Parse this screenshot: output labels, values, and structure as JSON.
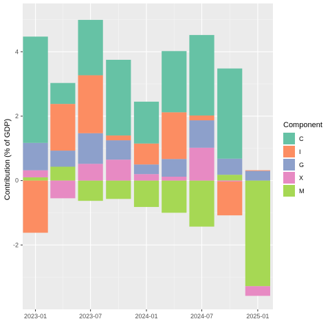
{
  "chart_data": {
    "type": "bar",
    "stacked": true,
    "title": "",
    "xlabel": "",
    "ylabel": "Contribution (% of GDP)",
    "x": [
      "2023-01-01",
      "2023-04-01",
      "2023-07-01",
      "2023-10-01",
      "2024-01-01",
      "2024-04-01",
      "2024-07-01",
      "2024-10-01",
      "2025-01-01"
    ],
    "x_ticks": [
      "2023-01-01",
      "2023-07-01",
      "2024-01-01",
      "2024-07-01",
      "2025-01-01"
    ],
    "x_tick_labels": [
      "2023-01",
      "2023-07",
      "2024-01",
      "2024-07",
      "2025-01"
    ],
    "xlim": [
      "2022-11-20",
      "2025-02-20"
    ],
    "y_ticks": [
      -2,
      0,
      2,
      4
    ],
    "ylim": [
      -4.0,
      5.5
    ],
    "grid": true,
    "legend": {
      "title": "Component",
      "position": "right"
    },
    "series": [
      {
        "name": "C",
        "color": "#66c2a5",
        "values": [
          3.3,
          0.65,
          1.72,
          2.35,
          1.3,
          1.9,
          2.5,
          2.8,
          0.0
        ]
      },
      {
        "name": "I",
        "color": "#fc8d62",
        "values": [
          -1.62,
          1.45,
          1.8,
          0.15,
          0.65,
          1.45,
          0.15,
          -1.05,
          0.02
        ]
      },
      {
        "name": "G",
        "color": "#8da0cb",
        "values": [
          0.85,
          0.5,
          0.95,
          0.6,
          0.3,
          0.55,
          0.85,
          0.5,
          0.3
        ]
      },
      {
        "name": "X",
        "color": "#e78ac3",
        "values": [
          0.22,
          -0.55,
          0.52,
          0.65,
          0.2,
          0.12,
          1.02,
          -0.03,
          -0.3
        ]
      },
      {
        "name": "M",
        "color": "#a6d854",
        "values": [
          0.1,
          0.43,
          -0.63,
          -0.57,
          -0.82,
          -1.0,
          -1.43,
          0.18,
          -3.28
        ]
      }
    ]
  }
}
